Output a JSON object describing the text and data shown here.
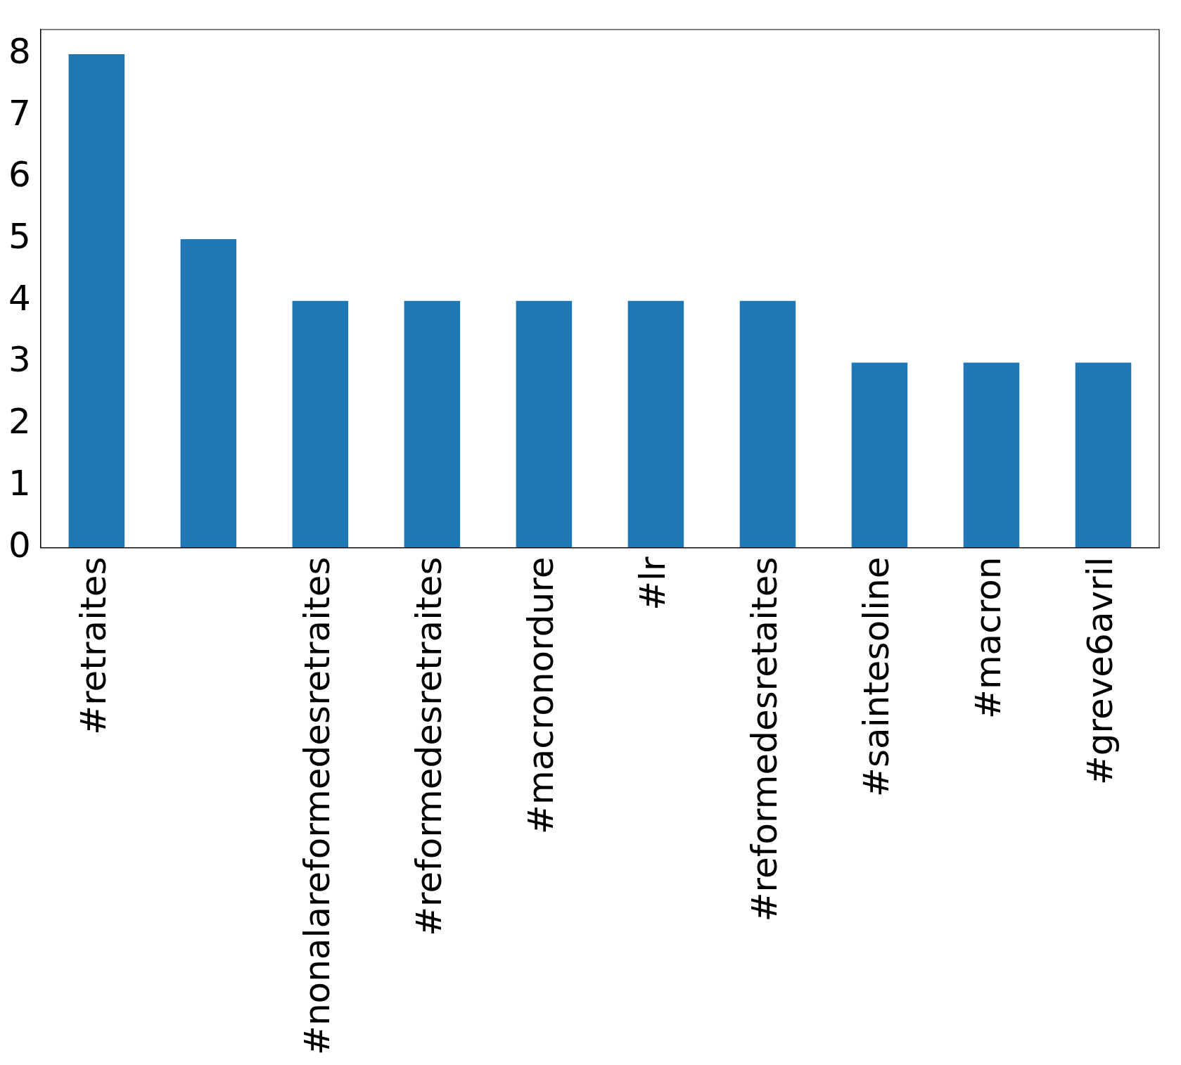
{
  "chart_data": {
    "type": "bar",
    "categories": [
      "#retraites",
      null,
      "#nonalareformedesretraites",
      "#reformedesretraites",
      "#macronordure",
      "#lr",
      "#reformedesretaites",
      "#saintesoline",
      "#macron",
      "#greve6avril"
    ],
    "values": [
      8,
      5,
      4,
      4,
      4,
      4,
      4,
      3,
      3,
      3
    ],
    "color": "#1f77b4",
    "ylim": [
      0,
      8.4
    ],
    "yticks": [
      0,
      1,
      2,
      3,
      4,
      5,
      6,
      7,
      8
    ],
    "grid": false,
    "legend": false
  }
}
